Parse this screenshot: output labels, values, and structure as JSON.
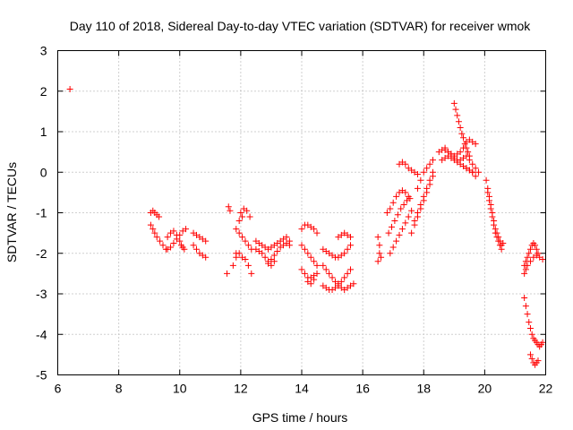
{
  "chart_data": {
    "type": "scatter",
    "title": "Day 110 of 2018, Sidereal Day-to-day VTEC variation (SDTVAR) for receiver wmok",
    "xlabel": "GPS time / hours",
    "ylabel": "SDTVAR / TECUs",
    "xlim": [
      6,
      22
    ],
    "ylim": [
      -5,
      3
    ],
    "xticks": [
      6,
      8,
      10,
      12,
      14,
      16,
      18,
      20,
      22
    ],
    "yticks": [
      -5,
      -4,
      -3,
      -2,
      -1,
      0,
      1,
      2,
      3
    ],
    "xtick_labels": [
      "6",
      "8",
      "10",
      "12",
      "14",
      "16",
      "18",
      "20",
      "22"
    ],
    "ytick_labels": [
      "-5",
      "-4",
      "-3",
      "-2",
      "-1",
      "0",
      "1",
      "2",
      "3"
    ],
    "grid": true,
    "marker": "+",
    "series_color": "#ff0000",
    "series": [
      {
        "name": "wmok",
        "x": [
          6.4,
          9.05,
          9.12,
          9.18,
          9.25,
          9.32,
          9.05,
          9.12,
          9.18,
          9.25,
          9.35,
          9.45,
          9.55,
          9.6,
          9.7,
          9.8,
          9.9,
          10.0,
          10.05,
          10.1,
          10.15,
          9.6,
          9.7,
          9.8,
          9.9,
          10.0,
          10.1,
          10.2,
          10.45,
          10.55,
          10.65,
          10.75,
          10.85,
          10.45,
          10.55,
          10.65,
          10.75,
          10.85,
          11.6,
          11.65,
          11.55,
          11.75,
          11.85,
          11.95,
          12.05,
          12.15,
          12.0,
          12.1,
          12.2,
          12.3,
          12.25,
          12.35,
          11.85,
          11.95,
          12.05,
          12.15,
          12.25,
          12.35,
          11.85,
          11.95,
          12.05,
          12.5,
          12.6,
          12.7,
          12.8,
          12.9,
          13.0,
          13.1,
          13.2,
          13.3,
          13.4,
          13.5,
          13.6,
          12.5,
          12.6,
          12.7,
          12.8,
          12.9,
          13.0,
          13.1,
          13.2,
          13.3,
          13.4,
          13.5,
          13.6,
          12.9,
          13.0,
          13.1,
          14.0,
          14.1,
          14.2,
          14.3,
          14.4,
          14.5,
          14.0,
          14.1,
          14.2,
          14.3,
          14.4,
          14.5,
          14.0,
          14.1,
          14.2,
          14.3,
          14.4,
          14.5,
          14.2,
          14.3,
          14.4,
          14.7,
          14.8,
          14.9,
          15.0,
          15.1,
          15.2,
          15.3,
          15.4,
          15.5,
          15.6,
          14.7,
          14.8,
          14.9,
          15.0,
          15.1,
          15.2,
          15.3,
          15.4,
          15.5,
          15.6,
          14.7,
          14.8,
          14.9,
          15.0,
          15.1,
          15.2,
          15.3,
          15.4,
          15.5,
          15.6,
          15.7,
          15.2,
          15.3,
          15.4,
          15.5,
          15.6,
          16.5,
          16.55,
          16.6,
          16.5,
          16.55,
          16.8,
          16.9,
          17.0,
          17.1,
          17.2,
          17.3,
          17.4,
          17.5,
          16.85,
          16.95,
          17.05,
          17.15,
          17.25,
          17.35,
          17.45,
          17.55,
          16.9,
          17.0,
          17.1,
          17.2,
          17.3,
          17.4,
          17.5,
          17.6,
          17.2,
          17.3,
          17.4,
          17.5,
          17.6,
          17.7,
          17.8,
          17.6,
          17.7,
          17.8,
          17.9,
          18.0,
          18.1,
          18.2,
          18.3,
          17.7,
          17.8,
          17.9,
          18.0,
          18.1,
          18.2,
          18.3,
          17.8,
          17.9,
          18.0,
          18.1,
          18.2,
          18.3,
          18.5,
          18.6,
          18.7,
          18.8,
          18.9,
          19.0,
          19.1,
          19.2,
          19.3,
          19.4,
          19.5,
          19.6,
          19.7,
          18.6,
          18.7,
          18.8,
          18.9,
          19.0,
          19.1,
          19.2,
          19.3,
          19.4,
          19.5,
          19.6,
          19.7,
          19.8,
          18.7,
          18.8,
          18.9,
          19.0,
          19.1,
          19.2,
          19.3,
          19.4,
          19.5,
          19.6,
          19.0,
          19.05,
          19.1,
          19.15,
          19.2,
          19.25,
          19.3,
          19.35,
          19.4,
          19.45,
          19.5,
          19.3,
          19.4,
          19.5,
          19.6,
          19.7,
          20.05,
          20.1,
          20.15,
          20.2,
          20.25,
          20.3,
          20.35,
          20.4,
          20.45,
          20.5,
          20.55,
          20.6,
          20.1,
          20.15,
          20.2,
          20.25,
          20.3,
          20.35,
          20.4,
          20.45,
          20.5,
          20.55,
          21.3,
          21.35,
          21.4,
          21.45,
          21.5,
          21.55,
          21.6,
          21.65,
          21.7,
          21.75,
          21.3,
          21.35,
          21.4,
          21.5,
          21.6,
          21.7,
          21.8,
          21.9,
          21.3,
          21.35,
          21.4,
          21.45,
          21.5,
          21.55,
          21.6,
          21.65,
          21.7,
          21.75,
          21.8,
          21.85,
          21.9,
          21.5,
          21.55,
          21.6,
          21.65,
          21.7,
          21.75
        ],
        "y": [
          2.05,
          -1.0,
          -0.95,
          -1.0,
          -1.05,
          -1.1,
          -1.3,
          -1.4,
          -1.5,
          -1.6,
          -1.7,
          -1.8,
          -1.9,
          -1.6,
          -1.5,
          -1.45,
          -1.55,
          -1.7,
          -1.8,
          -1.85,
          -1.9,
          -1.9,
          -1.85,
          -1.75,
          -1.65,
          -1.55,
          -1.45,
          -1.4,
          -1.5,
          -1.55,
          -1.6,
          -1.65,
          -1.7,
          -1.8,
          -1.9,
          -2.0,
          -2.05,
          -2.1,
          -0.85,
          -0.95,
          -2.5,
          -2.3,
          -2.1,
          -2.0,
          -2.1,
          -2.15,
          -1.0,
          -0.9,
          -0.95,
          -1.1,
          -2.3,
          -2.5,
          -1.4,
          -1.5,
          -1.6,
          -1.7,
          -1.8,
          -1.9,
          -2.0,
          -1.2,
          -1.1,
          -1.7,
          -1.75,
          -1.8,
          -1.85,
          -1.9,
          -1.85,
          -1.8,
          -1.75,
          -1.7,
          -1.65,
          -1.6,
          -1.7,
          -1.9,
          -1.95,
          -2.0,
          -2.1,
          -2.2,
          -2.15,
          -2.05,
          -1.95,
          -1.85,
          -1.8,
          -1.75,
          -1.8,
          -2.25,
          -2.3,
          -2.2,
          -1.8,
          -1.9,
          -2.0,
          -2.1,
          -2.2,
          -2.3,
          -2.4,
          -2.5,
          -2.6,
          -2.6,
          -2.55,
          -2.5,
          -1.4,
          -1.3,
          -1.3,
          -1.35,
          -1.4,
          -1.5,
          -2.7,
          -2.75,
          -2.65,
          -1.9,
          -1.95,
          -2.0,
          -2.05,
          -2.1,
          -2.1,
          -2.05,
          -2.0,
          -1.9,
          -1.8,
          -2.3,
          -2.4,
          -2.5,
          -2.6,
          -2.7,
          -2.75,
          -2.7,
          -2.6,
          -2.5,
          -2.4,
          -2.8,
          -2.85,
          -2.9,
          -2.9,
          -2.85,
          -2.8,
          -2.85,
          -2.9,
          -2.85,
          -2.8,
          -2.75,
          -1.6,
          -1.55,
          -1.5,
          -1.55,
          -1.6,
          -1.6,
          -1.8,
          -2.1,
          -2.2,
          -2.0,
          -1.0,
          -0.9,
          -0.75,
          -0.6,
          -0.5,
          -0.45,
          -0.5,
          -0.6,
          -1.5,
          -1.35,
          -1.2,
          -1.05,
          -0.9,
          -0.8,
          -0.7,
          -0.65,
          -2.0,
          -1.85,
          -1.7,
          -1.55,
          -1.4,
          -1.25,
          -1.1,
          -0.95,
          0.2,
          0.25,
          0.2,
          0.1,
          0.05,
          0.0,
          -0.05,
          -1.5,
          -1.3,
          -1.1,
          -0.9,
          -0.7,
          -0.5,
          -0.3,
          -0.1,
          -1.2,
          -1.0,
          -0.8,
          -0.6,
          -0.4,
          -0.2,
          0.0,
          -0.4,
          -0.2,
          0.0,
          0.1,
          0.2,
          0.3,
          0.5,
          0.55,
          0.6,
          0.5,
          0.45,
          0.4,
          0.45,
          0.5,
          0.6,
          0.75,
          0.8,
          0.75,
          0.7,
          0.3,
          0.35,
          0.4,
          0.35,
          0.3,
          0.25,
          0.3,
          0.35,
          0.4,
          0.3,
          0.2,
          0.1,
          0.0,
          0.55,
          0.5,
          0.45,
          0.35,
          0.3,
          0.2,
          0.15,
          0.1,
          0.05,
          0.0,
          1.7,
          1.55,
          1.4,
          1.25,
          1.1,
          0.95,
          0.85,
          0.7,
          0.6,
          0.5,
          0.4,
          0.15,
          0.1,
          0.05,
          0.0,
          -0.1,
          -0.2,
          -0.4,
          -0.6,
          -0.8,
          -1.0,
          -1.2,
          -1.4,
          -1.5,
          -1.6,
          -1.7,
          -1.8,
          -1.75,
          -0.5,
          -0.7,
          -0.9,
          -1.1,
          -1.3,
          -1.5,
          -1.6,
          -1.7,
          -1.8,
          -1.9,
          -2.3,
          -2.2,
          -2.1,
          -2.0,
          -1.9,
          -1.8,
          -1.75,
          -1.8,
          -1.9,
          -2.0,
          -2.5,
          -2.4,
          -2.3,
          -2.2,
          -2.1,
          -2.05,
          -2.1,
          -2.15,
          -3.1,
          -3.3,
          -3.5,
          -3.7,
          -3.85,
          -4.0,
          -4.1,
          -4.15,
          -4.2,
          -4.25,
          -4.3,
          -4.25,
          -4.2,
          -4.5,
          -4.6,
          -4.7,
          -4.75,
          -4.7,
          -4.65
        ]
      }
    ]
  }
}
